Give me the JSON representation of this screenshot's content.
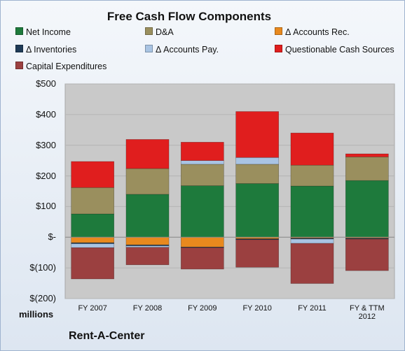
{
  "chart_data": {
    "type": "bar",
    "stacked": true,
    "title": "Free Cash Flow Components",
    "ylabel": "millions",
    "ylim": [
      -200,
      500
    ],
    "yticks": [
      -200,
      -100,
      0,
      100,
      200,
      300,
      400,
      500
    ],
    "ytick_labels": [
      "$(200)",
      "$(100)",
      "$-",
      "$100",
      "$200",
      "$300",
      "$400",
      "$500"
    ],
    "grid": true,
    "legend_position": "top",
    "categories": [
      "FY 2007",
      "FY 2008",
      "FY 2009",
      "FY 2010",
      "FY 2011",
      "FY & TTM 2012"
    ],
    "series": [
      {
        "name": "Net Income",
        "color": "#1e7a3c",
        "values": [
          76,
          140,
          168,
          175,
          167,
          185
        ]
      },
      {
        "name": "D&A",
        "color": "#9a8f5e",
        "values": [
          86,
          84,
          70,
          63,
          68,
          77
        ]
      },
      {
        "name": "Δ Accounts Rec.",
        "color": "#e8891e",
        "values": [
          -18,
          -25,
          -32,
          -5,
          -3,
          -3
        ]
      },
      {
        "name": "Δ Inventories",
        "color": "#1f3b57",
        "values": [
          -3,
          -3,
          -2,
          -3,
          -3,
          -3
        ]
      },
      {
        "name": "Δ Accounts Pay.",
        "color": "#a9c4e3",
        "values": [
          -13,
          -5,
          12,
          22,
          -14,
          0
        ]
      },
      {
        "name": "Questionable Cash Sources",
        "color": "#e01e1e",
        "values": [
          85,
          95,
          60,
          150,
          105,
          10
        ]
      },
      {
        "name": "Capital Expenditures",
        "color": "#9b4040",
        "values": [
          -102,
          -57,
          -70,
          -90,
          -131,
          -103
        ]
      }
    ]
  },
  "footer": {
    "company": "Rent-A-Center"
  }
}
